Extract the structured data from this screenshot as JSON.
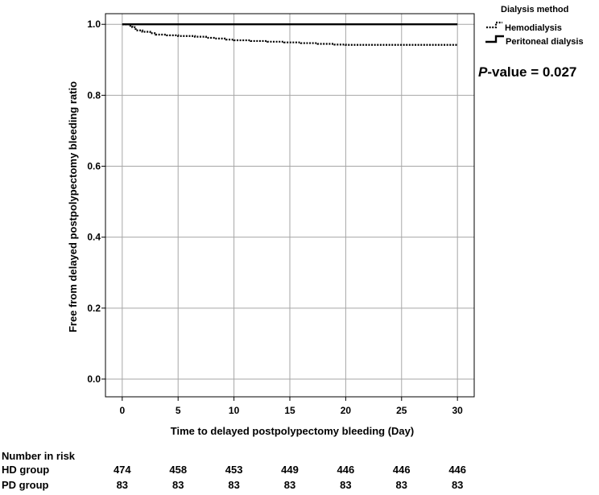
{
  "chart_data": {
    "type": "line",
    "subtype": "kaplan-meier",
    "title": "",
    "xlabel": "Time to delayed postpolypectomy bleeding (Day)",
    "ylabel": "Free from delayed postpolypectomy bleeding ratio",
    "xlim": [
      -1.5,
      31.5
    ],
    "ylim": [
      -0.05,
      1.03
    ],
    "x_ticks": [
      0,
      5,
      10,
      15,
      20,
      25,
      30
    ],
    "y_ticks": [
      0.0,
      0.2,
      0.4,
      0.6,
      0.8,
      1.0
    ],
    "grid": true,
    "legend": {
      "title": "Dialysis method",
      "placement": "top-right",
      "entries": [
        "Hemodialysis",
        "Peritoneal dialysis"
      ]
    },
    "series": [
      {
        "name": "Hemodialysis",
        "style": "dotted",
        "color": "#000000",
        "points": [
          [
            0,
            1.0
          ],
          [
            0.6,
            0.996
          ],
          [
            0.9,
            0.992
          ],
          [
            1.2,
            0.983
          ],
          [
            1.8,
            0.979
          ],
          [
            2.5,
            0.975
          ],
          [
            3,
            0.971
          ],
          [
            4,
            0.969
          ],
          [
            5,
            0.967
          ],
          [
            6.5,
            0.965
          ],
          [
            7.5,
            0.962
          ],
          [
            8.3,
            0.96
          ],
          [
            9.3,
            0.957
          ],
          [
            10,
            0.955
          ],
          [
            11.5,
            0.953
          ],
          [
            13,
            0.951
          ],
          [
            14.5,
            0.949
          ],
          [
            16,
            0.947
          ],
          [
            17.5,
            0.945
          ],
          [
            19,
            0.943
          ],
          [
            20,
            0.942
          ],
          [
            30,
            0.942
          ]
        ]
      },
      {
        "name": "Peritoneal dialysis",
        "style": "solid",
        "color": "#000000",
        "points": [
          [
            0,
            1.0
          ],
          [
            30,
            1.0
          ]
        ]
      }
    ],
    "annotation": {
      "prefix": "P",
      "suffix": "-value = 0.027"
    },
    "risk_table": {
      "title": "Number in risk",
      "times": [
        0,
        5,
        10,
        15,
        20,
        25,
        30
      ],
      "rows": [
        {
          "label": "HD group",
          "values": [
            "474",
            "458",
            "453",
            "449",
            "446",
            "446",
            "446"
          ]
        },
        {
          "label": "PD group",
          "values": [
            "83",
            "83",
            "83",
            "83",
            "83",
            "83",
            "83"
          ]
        }
      ]
    }
  }
}
